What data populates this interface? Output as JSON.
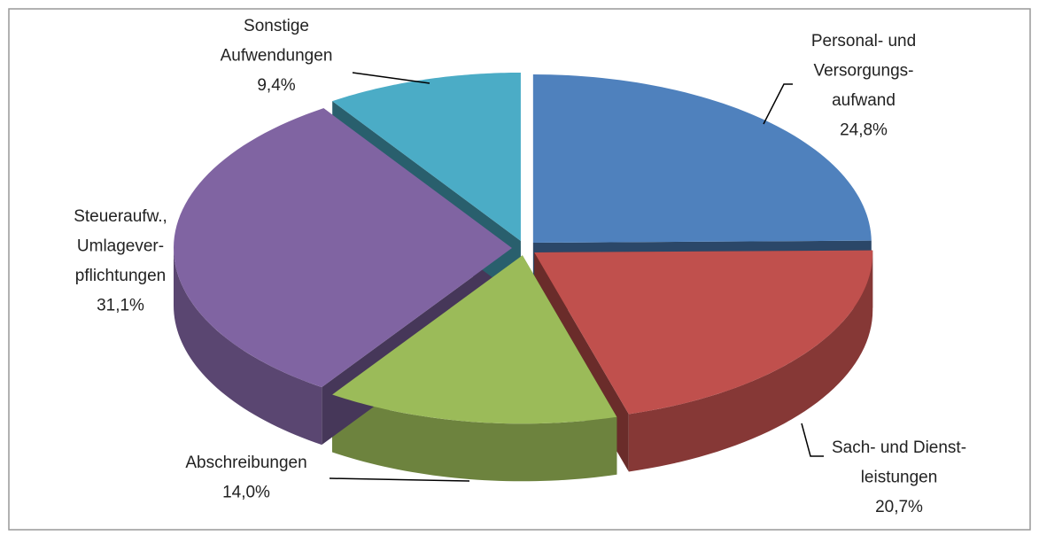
{
  "chart_data": {
    "type": "pie3d",
    "categories": [
      "Personal- und\nVersorgungs-\naufwand",
      "Sach- und Dienst-\nleistungen",
      "Abschreibungen",
      "Steueraufw.,\nUmlagever-\npflichtungen",
      "Sonstige\nAufwendungen"
    ],
    "values": [
      24.8,
      20.7,
      14.0,
      31.1,
      9.4
    ],
    "value_labels": [
      "24,8%",
      "20,7%",
      "14,0%",
      "31,1%",
      "9,4%"
    ],
    "colors": [
      "#4f81bd",
      "#c0504d",
      "#9bbb59",
      "#8064a2",
      "#4bacc6"
    ]
  }
}
